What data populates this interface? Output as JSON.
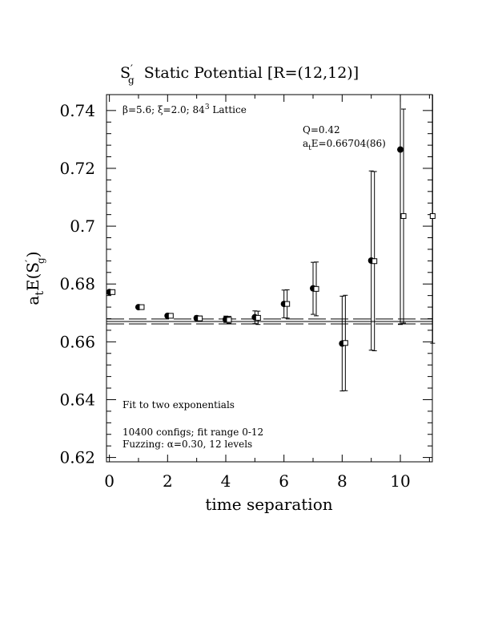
{
  "chart_data": {
    "type": "scatter",
    "title": "S'g  Static Potential [R=(12,12)]",
    "title_parts": {
      "symbol": "S",
      "prime": "′",
      "sub": "g",
      "rest": "  Static Potential [R=(12,12)]"
    },
    "xlabel": "time separation",
    "ylabel": "atE(S'g)",
    "ylabel_parts": {
      "a": "a",
      "t": "t",
      "E": "E(S",
      "prime": "′",
      "g": "g",
      "close": ")"
    },
    "xlim": [
      -0.1,
      11.1
    ],
    "ylim": [
      0.6185,
      0.7455
    ],
    "x_ticks": [
      0,
      2,
      4,
      6,
      8,
      10
    ],
    "y_ticks": [
      0.62,
      0.64,
      0.66,
      0.68,
      0.7,
      0.72,
      0.74
    ],
    "y_tick_labels": [
      "0.62",
      "0.64",
      "0.66",
      "0.68",
      "0.7",
      "0.72",
      "0.74"
    ],
    "annotations": {
      "lattice": {
        "beta": "β=5.6; ",
        "xi": "ξ=2.0; ",
        "size": "84",
        "exp": "3",
        "rest": " Lattice"
      },
      "q_value": "Q=0.42",
      "energy": {
        "a": "a",
        "t": "t",
        "rest": "E=0.66704(86)"
      },
      "fit_note": "Fit to two exponentials",
      "configs": "10400 configs; fit range 0-12",
      "fuzzing": "Fuzzing: α=0.30, 12 levels"
    },
    "fit": {
      "value": 0.66704,
      "error": 0.00086
    },
    "series": [
      {
        "marker": "filled-circle",
        "points": [
          {
            "x": 0,
            "y": 0.6772,
            "err": 0.0005
          },
          {
            "x": 1,
            "y": 0.672,
            "err": 0.0005
          },
          {
            "x": 2,
            "y": 0.669,
            "err": 0.0006
          },
          {
            "x": 3,
            "y": 0.6682,
            "err": 0.0008
          },
          {
            "x": 4,
            "y": 0.6678,
            "err": 0.0011
          },
          {
            "x": 5,
            "y": 0.6685,
            "err": 0.0022
          },
          {
            "x": 6,
            "y": 0.6731,
            "err": 0.0048
          },
          {
            "x": 7,
            "y": 0.6785,
            "err": 0.009
          },
          {
            "x": 8,
            "y": 0.6594,
            "err": 0.0164
          },
          {
            "x": 9,
            "y": 0.6881,
            "err": 0.031
          },
          {
            "x": 10,
            "y": 0.7265,
            "err": 0.0605
          }
        ]
      },
      {
        "marker": "open-square",
        "points": [
          {
            "x": 0,
            "y": 0.6772,
            "err": 0.0005
          },
          {
            "x": 1,
            "y": 0.672,
            "err": 0.0005
          },
          {
            "x": 2,
            "y": 0.669,
            "err": 0.0006
          },
          {
            "x": 3,
            "y": 0.6681,
            "err": 0.0008
          },
          {
            "x": 4,
            "y": 0.6676,
            "err": 0.0012
          },
          {
            "x": 5,
            "y": 0.6683,
            "err": 0.0023
          },
          {
            "x": 6,
            "y": 0.6731,
            "err": 0.0049
          },
          {
            "x": 7,
            "y": 0.6783,
            "err": 0.0093
          },
          {
            "x": 8,
            "y": 0.6596,
            "err": 0.0165
          },
          {
            "x": 9,
            "y": 0.6879,
            "err": 0.031
          },
          {
            "x": 10,
            "y": 0.7035,
            "err": 0.037
          },
          {
            "x": 11,
            "y": 0.7035,
            "err": 0.044
          }
        ]
      }
    ]
  }
}
